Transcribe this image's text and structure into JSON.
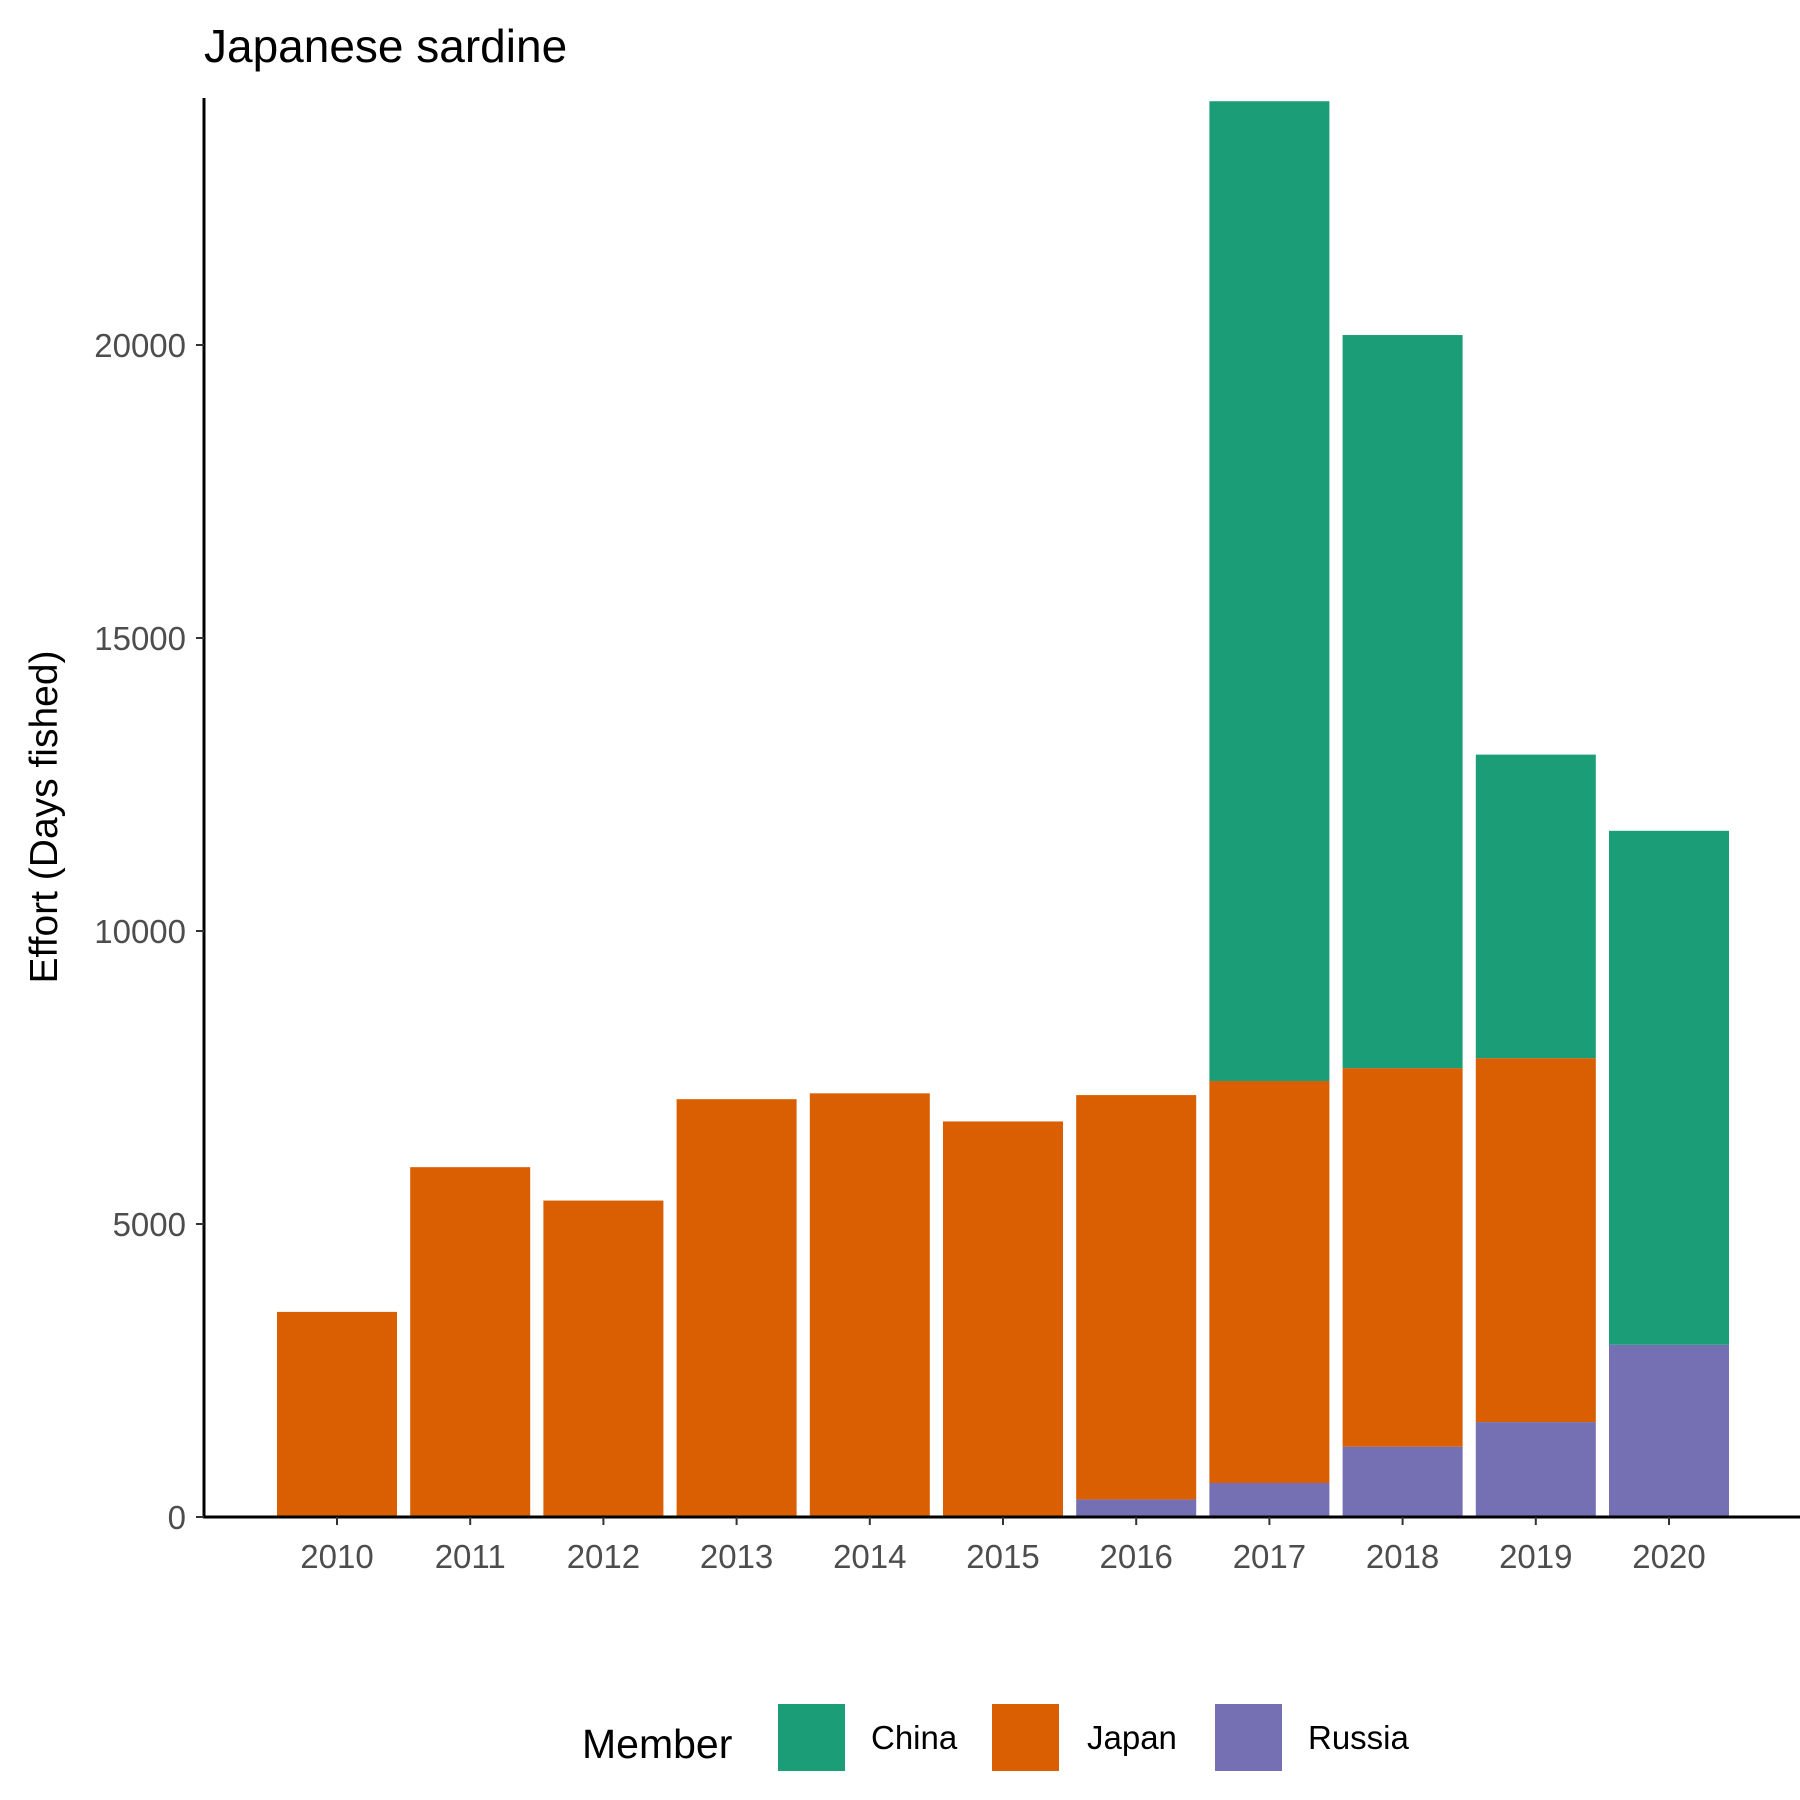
{
  "chart_data": {
    "type": "bar",
    "stacked": true,
    "title": "Japanese sardine",
    "xlabel": "",
    "ylabel": "Effort (Days fished)",
    "categories": [
      "2010",
      "2011",
      "2012",
      "2013",
      "2014",
      "2015",
      "2016",
      "2017",
      "2018",
      "2019",
      "2020"
    ],
    "ylim": [
      0,
      24200
    ],
    "yticks": [
      0,
      5000,
      10000,
      15000,
      20000
    ],
    "ytick_labels": [
      "0",
      "5000",
      "10000",
      "15000",
      "20000"
    ],
    "legend_title": "Member",
    "legend_position": "bottom",
    "grid": false,
    "series": [
      {
        "name": "Russia",
        "color": "#7570b3",
        "values": [
          0,
          0,
          0,
          0,
          0,
          0,
          300,
          580,
          1200,
          1620,
          2940
        ]
      },
      {
        "name": "Japan",
        "color": "#d95f02",
        "values": [
          3500,
          5970,
          5400,
          7130,
          7230,
          6750,
          6900,
          6860,
          6460,
          6210,
          0
        ]
      },
      {
        "name": "China",
        "color": "#1b9e77",
        "values": [
          0,
          0,
          0,
          0,
          0,
          0,
          0,
          16720,
          12510,
          5180,
          8770
        ]
      }
    ],
    "legend_order": [
      "China",
      "Japan",
      "Russia"
    ]
  }
}
